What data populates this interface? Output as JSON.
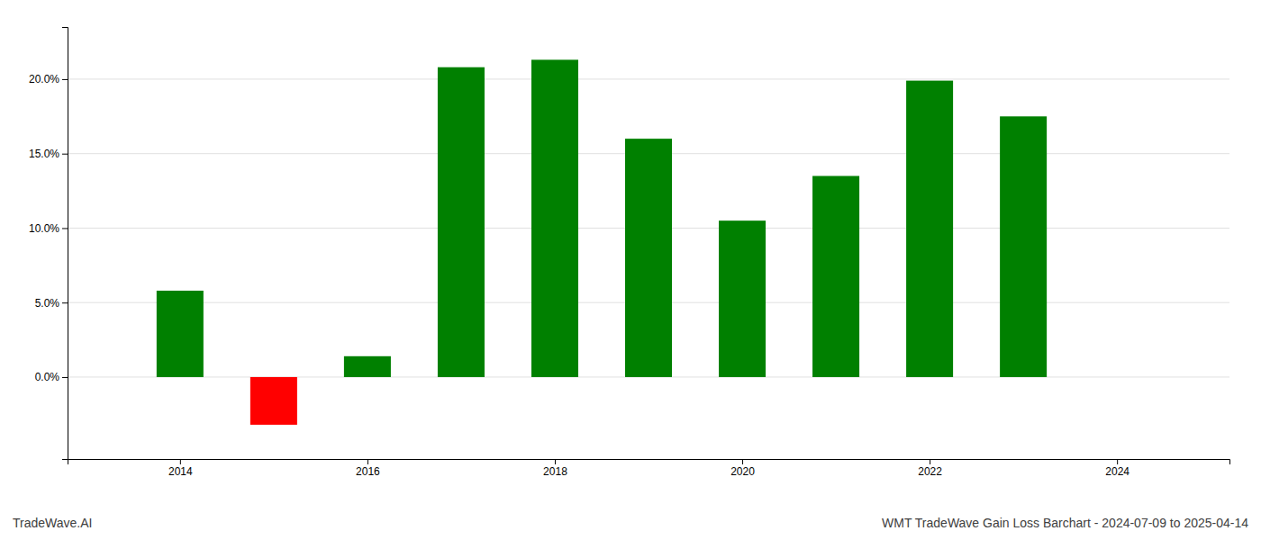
{
  "chart_data": {
    "type": "bar",
    "title": "WMT TradeWave Gain Loss Barchart - 2024-07-09 to 2025-04-14",
    "annotations": [
      "TradeWave.AI"
    ],
    "x": [
      2014,
      2015,
      2016,
      2017,
      2018,
      2019,
      2020,
      2021,
      2022,
      2023
    ],
    "values": [
      0.058,
      -0.032,
      0.014,
      0.208,
      0.213,
      0.16,
      0.105,
      0.135,
      0.199,
      0.175
    ],
    "colors": [
      "#008000",
      "#ff0000",
      "#008000",
      "#008000",
      "#008000",
      "#008000",
      "#008000",
      "#008000",
      "#008000",
      "#008000"
    ],
    "xlim": [
      2012.8,
      2025.2
    ],
    "xticks": [
      2014,
      2016,
      2018,
      2020,
      2022,
      2024
    ],
    "ylim": [
      -0.055,
      0.235
    ],
    "yticks": [
      {
        "value": 0.0,
        "label": "0.0%"
      },
      {
        "value": 0.05,
        "label": "5.0%"
      },
      {
        "value": 0.1,
        "label": "10.0%"
      },
      {
        "value": 0.15,
        "label": "15.0%"
      },
      {
        "value": 0.2,
        "label": "20.0%"
      }
    ],
    "grid": true
  }
}
